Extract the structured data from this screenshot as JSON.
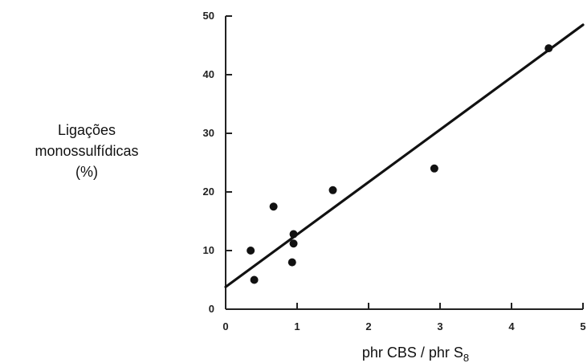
{
  "chart_data": {
    "type": "scatter",
    "title": "",
    "xlabel": "phr CBS / phr S",
    "xlabel_subscript": "8",
    "ylabel_lines": [
      "Ligações",
      "monossulfídicas",
      "(%)"
    ],
    "xlim": [
      0,
      5
    ],
    "ylim": [
      0,
      50
    ],
    "xticks": [
      0,
      1,
      2,
      3,
      4,
      5
    ],
    "yticks": [
      0,
      10,
      20,
      30,
      40,
      50
    ],
    "grid": false,
    "legend": "none",
    "points": [
      {
        "x": 0.35,
        "y": 10.0
      },
      {
        "x": 0.4,
        "y": 5.0
      },
      {
        "x": 0.67,
        "y": 17.5
      },
      {
        "x": 0.93,
        "y": 8.0
      },
      {
        "x": 0.95,
        "y": 11.2
      },
      {
        "x": 0.95,
        "y": 12.8
      },
      {
        "x": 1.5,
        "y": 20.3
      },
      {
        "x": 2.92,
        "y": 24.0
      },
      {
        "x": 4.52,
        "y": 44.5
      }
    ],
    "fit_line": {
      "x": [
        0,
        5
      ],
      "y": [
        3.8,
        48.5
      ]
    },
    "colors": {
      "points": "#111111",
      "line": "#111111",
      "axis": "#222222"
    }
  }
}
